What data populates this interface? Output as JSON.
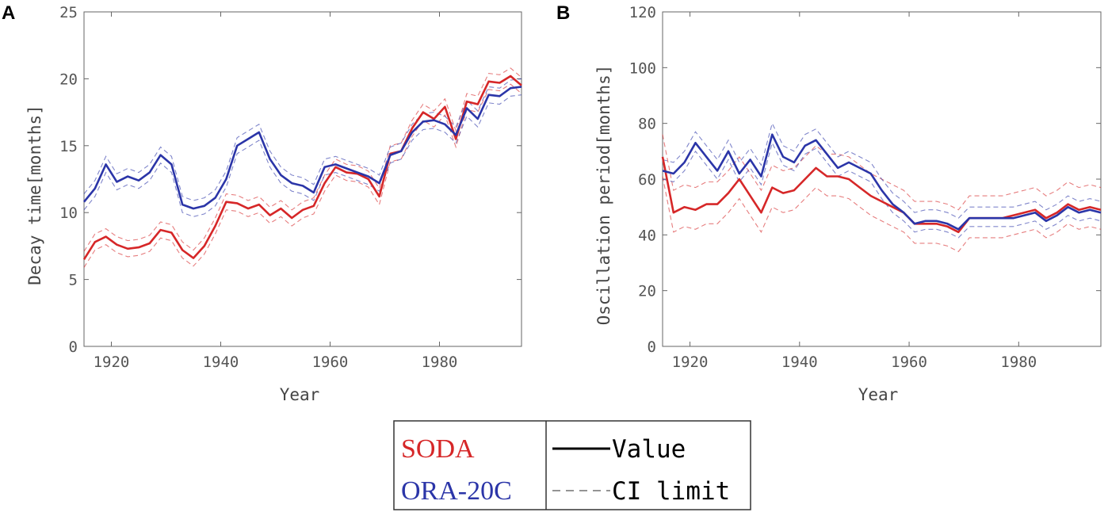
{
  "colors": {
    "soda": "#d62728",
    "ora": "#2b35a8",
    "axis": "#666666",
    "ci": "#a05080"
  },
  "chart_data": [
    {
      "type": "line",
      "panel": "A",
      "xlabel": "Year",
      "ylabel": "Decay time[months]",
      "xlim": [
        1915,
        1995
      ],
      "ylim": [
        0,
        25
      ],
      "xticks": [
        1920,
        1940,
        1960,
        1980
      ],
      "yticks": [
        0,
        5,
        10,
        15,
        20,
        25
      ],
      "ci_halfwidth": 0.6,
      "series": [
        {
          "name": "SODA",
          "color": "#d62728",
          "x": [
            1915,
            1917,
            1919,
            1921,
            1923,
            1925,
            1927,
            1929,
            1931,
            1933,
            1935,
            1937,
            1939,
            1941,
            1943,
            1945,
            1947,
            1949,
            1951,
            1953,
            1955,
            1957,
            1959,
            1961,
            1963,
            1965,
            1967,
            1969,
            1971,
            1973,
            1975,
            1977,
            1979,
            1981,
            1983,
            1985,
            1987,
            1989,
            1991,
            1993,
            1995
          ],
          "values": [
            6.5,
            7.8,
            8.2,
            7.6,
            7.3,
            7.4,
            7.7,
            8.7,
            8.5,
            7.2,
            6.6,
            7.5,
            9.0,
            10.8,
            10.7,
            10.3,
            10.6,
            9.8,
            10.3,
            9.6,
            10.2,
            10.5,
            12.2,
            13.4,
            13.0,
            12.9,
            12.5,
            11.2,
            14.4,
            14.6,
            16.3,
            17.5,
            17.0,
            17.9,
            15.5,
            18.3,
            18.1,
            19.8,
            19.7,
            20.2,
            19.5
          ]
        },
        {
          "name": "ORA-20C",
          "color": "#2b35a8",
          "x": [
            1915,
            1917,
            1919,
            1921,
            1923,
            1925,
            1927,
            1929,
            1931,
            1933,
            1935,
            1937,
            1939,
            1941,
            1943,
            1945,
            1947,
            1949,
            1951,
            1953,
            1955,
            1957,
            1959,
            1961,
            1963,
            1965,
            1967,
            1969,
            1971,
            1973,
            1975,
            1977,
            1979,
            1981,
            1983,
            1985,
            1987,
            1989,
            1991,
            1993,
            1995
          ],
          "values": [
            10.8,
            11.8,
            13.6,
            12.3,
            12.7,
            12.4,
            13.0,
            14.3,
            13.6,
            10.6,
            10.3,
            10.5,
            11.1,
            12.5,
            15.0,
            15.5,
            16.0,
            14.0,
            12.8,
            12.2,
            12.0,
            11.5,
            13.4,
            13.6,
            13.3,
            13.0,
            12.7,
            12.2,
            14.3,
            14.6,
            16.0,
            16.8,
            16.9,
            16.6,
            15.8,
            17.8,
            17.0,
            18.8,
            18.7,
            19.3,
            19.4
          ]
        }
      ]
    },
    {
      "type": "line",
      "panel": "B",
      "xlabel": "Year",
      "ylabel": "Oscillation period[months]",
      "xlim": [
        1915,
        1995
      ],
      "ylim": [
        0,
        120
      ],
      "xticks": [
        1920,
        1940,
        1960,
        1980
      ],
      "yticks": [
        0,
        20,
        40,
        60,
        80,
        100,
        120
      ],
      "series": [
        {
          "name": "SODA",
          "color": "#d62728",
          "x": [
            1915,
            1917,
            1919,
            1921,
            1923,
            1925,
            1927,
            1929,
            1931,
            1933,
            1935,
            1937,
            1939,
            1941,
            1943,
            1945,
            1947,
            1949,
            1951,
            1953,
            1955,
            1957,
            1959,
            1961,
            1963,
            1965,
            1967,
            1969,
            1971,
            1973,
            1975,
            1977,
            1979,
            1981,
            1983,
            1985,
            1987,
            1989,
            1991,
            1993,
            1995
          ],
          "values": [
            68,
            48,
            50,
            49,
            51,
            51,
            55,
            60,
            54,
            48,
            57,
            55,
            56,
            60,
            64,
            61,
            61,
            60,
            57,
            54,
            52,
            50,
            48,
            44,
            44,
            44,
            43,
            41,
            46,
            46,
            46,
            46,
            47,
            48,
            49,
            46,
            48,
            51,
            49,
            50,
            49
          ]
        },
        {
          "name": "ORA-20C",
          "color": "#2b35a8",
          "x": [
            1915,
            1917,
            1919,
            1921,
            1923,
            1925,
            1927,
            1929,
            1931,
            1933,
            1935,
            1937,
            1939,
            1941,
            1943,
            1945,
            1947,
            1949,
            1951,
            1953,
            1955,
            1957,
            1959,
            1961,
            1963,
            1965,
            1967,
            1969,
            1971,
            1973,
            1975,
            1977,
            1979,
            1981,
            1983,
            1985,
            1987,
            1989,
            1991,
            1993,
            1995
          ],
          "values": [
            63,
            62,
            66,
            73,
            68,
            63,
            70,
            62,
            67,
            61,
            76,
            68,
            66,
            72,
            74,
            69,
            64,
            66,
            64,
            62,
            56,
            51,
            48,
            44,
            45,
            45,
            44,
            42,
            46,
            46,
            46,
            46,
            46,
            47,
            48,
            45,
            47,
            50,
            48,
            49,
            48
          ]
        }
      ],
      "ci": {
        "soda": {
          "upper_offset": 8,
          "lower_offset": -7
        },
        "ora": {
          "upper_offset": 4,
          "lower_offset": -3
        }
      }
    }
  ],
  "panels": {
    "a": {
      "letter": "A"
    },
    "b": {
      "letter": "B"
    }
  },
  "legend": {
    "soda_label": "SODA",
    "ora_label": "ORA-20C",
    "value_label": "Value",
    "ci_label": "CI limit"
  }
}
